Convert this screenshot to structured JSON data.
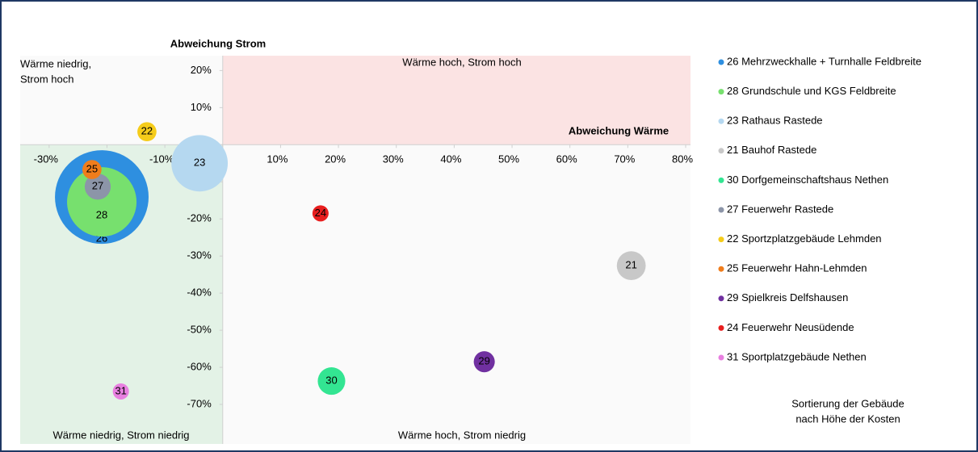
{
  "chart_data": {
    "type": "scatter",
    "x_label": "Abweichung Wärme",
    "y_label": "Abweichung Strom",
    "xlim": [
      -35,
      80
    ],
    "ylim": [
      -80,
      24
    ],
    "xticks": [
      {
        "value": -30,
        "label": "-30%"
      },
      {
        "value": -20,
        "label": "-20%"
      },
      {
        "value": -10,
        "label": "-10%"
      },
      {
        "value": 0,
        "label": "0%"
      },
      {
        "value": 10,
        "label": "10%"
      },
      {
        "value": 20,
        "label": "20%"
      },
      {
        "value": 30,
        "label": "30%"
      },
      {
        "value": 40,
        "label": "40%"
      },
      {
        "value": 50,
        "label": "50%"
      },
      {
        "value": 60,
        "label": "60%"
      },
      {
        "value": 70,
        "label": "70%"
      },
      {
        "value": 80,
        "label": "80%"
      }
    ],
    "yticks": [
      {
        "value": 20,
        "label": "20%"
      },
      {
        "value": 10,
        "label": "10%"
      },
      {
        "value": 0,
        "label": "0%"
      },
      {
        "value": -10,
        "label": "-10%"
      },
      {
        "value": -20,
        "label": "-20%"
      },
      {
        "value": -30,
        "label": "-30%"
      },
      {
        "value": -40,
        "label": "-40%"
      },
      {
        "value": -50,
        "label": "-50%"
      },
      {
        "value": -60,
        "label": "-60%"
      },
      {
        "value": -70,
        "label": "-70%"
      }
    ],
    "quadrants": {
      "top_left": [
        "Wärme niedrig,",
        "Strom hoch"
      ],
      "top_right": "Wärme hoch, Strom hoch",
      "bottom_left": "Wärme niedrig, Strom niedrig",
      "bottom_right": "Wärme hoch, Strom niedrig"
    },
    "note": [
      "Sortierung der Gebäude",
      "nach Höhe der Kosten"
    ],
    "series": [
      {
        "name": "26 Mehrzweckhalle + Turnhalle Feldbreite",
        "label": "26",
        "color": "#2e8fe0",
        "x": -20.9,
        "y": -14.1,
        "size": 336
      },
      {
        "name": "28 Grundschule und KGS Feldbreite",
        "label": "28",
        "color": "#77e06e",
        "x": -20.9,
        "y": -15.4,
        "size": 185
      },
      {
        "name": "23 Rathaus Rastede",
        "label": "23",
        "color": "#b5d8f0",
        "x": -4.0,
        "y": -5.0,
        "size": 122
      },
      {
        "name": "21 Bauhof Rastede",
        "label": "21",
        "color": "#c8c8c8",
        "x": 70.6,
        "y": -32.6,
        "size": 32
      },
      {
        "name": "30 Dorfgemeinschaftshaus Nethen",
        "label": "30",
        "color": "#33e592",
        "x": 18.8,
        "y": -63.7,
        "size": 29
      },
      {
        "name": "27 Feuerwehr Rastede",
        "label": "27",
        "color": "#8c95a8",
        "x": -21.6,
        "y": -11.3,
        "size": 26
      },
      {
        "name": "22 Sportzplatzgebäude Lehmden",
        "label": "22",
        "color": "#f5cc1a",
        "x": -13.1,
        "y": 3.5,
        "size": 14
      },
      {
        "name": "25 Feuerwehr Hahn-Lehmden",
        "label": "25",
        "color": "#f07d1c",
        "x": -22.6,
        "y": -6.7,
        "size": 14
      },
      {
        "name": "29 Spielkreis Delfshausen",
        "label": "29",
        "color": "#7030a0",
        "x": 45.2,
        "y": -58.5,
        "size": 17
      },
      {
        "name": "24 Feuerwehr Neusüdende",
        "label": "24",
        "color": "#e81e1e",
        "x": 16.9,
        "y": -18.5,
        "size": 10
      },
      {
        "name": "31 Sportplatzgebäude Nethen",
        "label": "31",
        "color": "#e87fe0",
        "x": -17.6,
        "y": -66.5,
        "size": 10
      }
    ]
  }
}
